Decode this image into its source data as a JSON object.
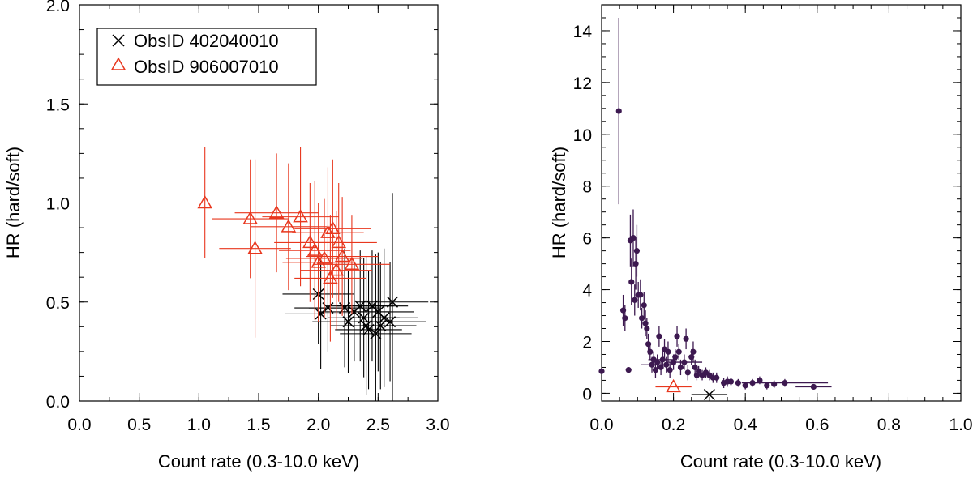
{
  "chart_data": [
    {
      "type": "scatter",
      "xlabel": "Count rate (0.3-10.0 keV)",
      "ylabel": "HR (hard/soft)",
      "xlim": [
        0.0,
        3.0
      ],
      "ylim": [
        0.0,
        2.0
      ],
      "xticks": [
        0.0,
        0.5,
        1.0,
        1.5,
        2.0,
        2.5,
        3.0
      ],
      "xtick_labels": [
        "0.0",
        "0.5",
        "1.0",
        "1.5",
        "2.0",
        "2.5",
        "3.0"
      ],
      "yticks": [
        0.0,
        0.5,
        1.0,
        1.5,
        2.0
      ],
      "ytick_labels": [
        "0.0",
        "0.5",
        "1.0",
        "1.5",
        "2.0"
      ],
      "legend": {
        "position": "top-left",
        "entries": [
          {
            "label": "ObsID 402040010",
            "marker": "cross",
            "color": "#000000"
          },
          {
            "label": "ObsID 906007010",
            "marker": "triangle",
            "color": "#e8371e"
          }
        ]
      },
      "series": [
        {
          "name": "ObsID 402040010",
          "marker": "cross",
          "color": "#000000",
          "points": [
            {
              "x": 2.0,
              "y": 0.54,
              "xerr": 0.3,
              "yerr": 0.25
            },
            {
              "x": 2.02,
              "y": 0.44,
              "xerr": 0.3,
              "yerr": 0.28
            },
            {
              "x": 2.08,
              "y": 0.47,
              "xerr": 0.28,
              "yerr": 0.22
            },
            {
              "x": 2.22,
              "y": 0.47,
              "xerr": 0.3,
              "yerr": 0.3
            },
            {
              "x": 2.25,
              "y": 0.4,
              "xerr": 0.3,
              "yerr": 0.26
            },
            {
              "x": 2.3,
              "y": 0.45,
              "xerr": 0.3,
              "yerr": 0.25
            },
            {
              "x": 2.35,
              "y": 0.48,
              "xerr": 0.28,
              "yerr": 0.28
            },
            {
              "x": 2.38,
              "y": 0.42,
              "xerr": 0.3,
              "yerr": 0.3
            },
            {
              "x": 2.4,
              "y": 0.38,
              "xerr": 0.3,
              "yerr": 0.35
            },
            {
              "x": 2.42,
              "y": 0.36,
              "xerr": 0.28,
              "yerr": 0.3
            },
            {
              "x": 2.45,
              "y": 0.48,
              "xerr": 0.3,
              "yerr": 0.28
            },
            {
              "x": 2.48,
              "y": 0.34,
              "xerr": 0.3,
              "yerr": 0.4
            },
            {
              "x": 2.5,
              "y": 0.45,
              "xerr": 0.3,
              "yerr": 0.3
            },
            {
              "x": 2.52,
              "y": 0.38,
              "xerr": 0.3,
              "yerr": 0.32
            },
            {
              "x": 2.55,
              "y": 0.42,
              "xerr": 0.28,
              "yerr": 0.35
            },
            {
              "x": 2.6,
              "y": 0.4,
              "xerr": 0.3,
              "yerr": 0.3
            },
            {
              "x": 2.62,
              "y": 0.5,
              "xerr": 0.3,
              "yerr": 0.55
            }
          ]
        },
        {
          "name": "ObsID 906007010",
          "marker": "triangle",
          "color": "#e8371e",
          "points": [
            {
              "x": 1.05,
              "y": 1.0,
              "xerr": 0.4,
              "yerr": 0.28
            },
            {
              "x": 1.43,
              "y": 0.92,
              "xerr": 0.32,
              "yerr": 0.3
            },
            {
              "x": 1.47,
              "y": 0.77,
              "xerr": 0.3,
              "yerr": 0.45
            },
            {
              "x": 1.65,
              "y": 0.95,
              "xerr": 0.35,
              "yerr": 0.3
            },
            {
              "x": 1.75,
              "y": 0.88,
              "xerr": 0.32,
              "yerr": 0.32
            },
            {
              "x": 1.85,
              "y": 0.93,
              "xerr": 0.32,
              "yerr": 0.35
            },
            {
              "x": 1.93,
              "y": 0.8,
              "xerr": 0.3,
              "yerr": 0.3
            },
            {
              "x": 1.97,
              "y": 0.76,
              "xerr": 0.3,
              "yerr": 0.35
            },
            {
              "x": 2.0,
              "y": 0.7,
              "xerr": 0.3,
              "yerr": 0.3
            },
            {
              "x": 2.05,
              "y": 0.72,
              "xerr": 0.32,
              "yerr": 0.3
            },
            {
              "x": 2.08,
              "y": 0.85,
              "xerr": 0.3,
              "yerr": 0.33
            },
            {
              "x": 2.1,
              "y": 0.62,
              "xerr": 0.3,
              "yerr": 0.32
            },
            {
              "x": 2.12,
              "y": 0.87,
              "xerr": 0.32,
              "yerr": 0.35
            },
            {
              "x": 2.15,
              "y": 0.66,
              "xerr": 0.3,
              "yerr": 0.3
            },
            {
              "x": 2.17,
              "y": 0.8,
              "xerr": 0.32,
              "yerr": 0.3
            },
            {
              "x": 2.2,
              "y": 0.73,
              "xerr": 0.3,
              "yerr": 0.3
            },
            {
              "x": 2.28,
              "y": 0.69,
              "xerr": 0.32,
              "yerr": 0.25
            }
          ]
        }
      ]
    },
    {
      "type": "scatter",
      "xlabel": "Count rate (0.3-10.0 keV)",
      "ylabel": "HR (hard/soft)",
      "xlim": [
        0.0,
        1.0
      ],
      "ylim": [
        -0.3,
        15.0
      ],
      "xticks": [
        0.0,
        0.2,
        0.4,
        0.6,
        0.8,
        1.0
      ],
      "xtick_labels": [
        "0.0",
        "0.2",
        "0.4",
        "0.6",
        "0.8",
        "1.0"
      ],
      "yticks": [
        0,
        2,
        4,
        6,
        8,
        10,
        12,
        14
      ],
      "ytick_labels": [
        "0",
        "2",
        "4",
        "6",
        "8",
        "10",
        "12",
        "14"
      ],
      "series": [
        {
          "marker": "dot",
          "color": "#3d1950",
          "points": [
            {
              "x": 0.0,
              "y": 0.85,
              "yerr": 0.0
            },
            {
              "x": 0.048,
              "y": 10.9,
              "yerr": 3.6
            },
            {
              "x": 0.06,
              "y": 3.2,
              "yerr": 0.6
            },
            {
              "x": 0.065,
              "y": 2.9,
              "yerr": 0.5
            },
            {
              "x": 0.075,
              "y": 0.9,
              "yerr": 0.0
            },
            {
              "x": 0.08,
              "y": 5.9,
              "yerr": 1.0
            },
            {
              "x": 0.083,
              "y": 4.3,
              "yerr": 0.9
            },
            {
              "x": 0.088,
              "y": 6.0,
              "yerr": 1.1
            },
            {
              "x": 0.092,
              "y": 3.6,
              "yerr": 0.6
            },
            {
              "x": 0.095,
              "y": 5.0,
              "yerr": 1.0
            },
            {
              "x": 0.098,
              "y": 5.5,
              "yerr": 1.0
            },
            {
              "x": 0.102,
              "y": 3.8,
              "yerr": 0.5
            },
            {
              "x": 0.108,
              "y": 3.8,
              "yerr": 0.6
            },
            {
              "x": 0.112,
              "y": 2.9,
              "yerr": 0.4
            },
            {
              "x": 0.118,
              "y": 3.4,
              "yerr": 0.5
            },
            {
              "x": 0.122,
              "y": 2.7,
              "yerr": 0.5
            },
            {
              "x": 0.126,
              "y": 2.5,
              "yerr": 0.4
            },
            {
              "x": 0.13,
              "y": 1.9,
              "yerr": 0.4
            },
            {
              "x": 0.135,
              "y": 1.6,
              "yerr": 0.3
            },
            {
              "x": 0.14,
              "y": 1.1,
              "yerr": 0.3,
              "xerr": 0.03
            },
            {
              "x": 0.145,
              "y": 1.3,
              "yerr": 0.3
            },
            {
              "x": 0.15,
              "y": 0.9,
              "yerr": 0.3
            },
            {
              "x": 0.155,
              "y": 1.2,
              "yerr": 0.3
            },
            {
              "x": 0.16,
              "y": 2.2,
              "yerr": 0.4
            },
            {
              "x": 0.165,
              "y": 1.0,
              "yerr": 0.3
            },
            {
              "x": 0.17,
              "y": 1.3,
              "yerr": 0.3,
              "xerr": 0.04
            },
            {
              "x": 0.175,
              "y": 1.7,
              "yerr": 0.4
            },
            {
              "x": 0.18,
              "y": 1.1,
              "yerr": 0.3
            },
            {
              "x": 0.185,
              "y": 1.6,
              "yerr": 0.4
            },
            {
              "x": 0.19,
              "y": 0.9,
              "yerr": 0.3
            },
            {
              "x": 0.2,
              "y": 1.2,
              "yerr": 0.3
            },
            {
              "x": 0.205,
              "y": 1.4,
              "yerr": 0.3
            },
            {
              "x": 0.21,
              "y": 2.2,
              "yerr": 0.4
            },
            {
              "x": 0.215,
              "y": 1.6,
              "yerr": 0.3
            },
            {
              "x": 0.22,
              "y": 1.0,
              "yerr": 0.3
            },
            {
              "x": 0.23,
              "y": 1.2,
              "yerr": 0.3,
              "xerr": 0.05
            },
            {
              "x": 0.235,
              "y": 2.1,
              "yerr": 0.4
            },
            {
              "x": 0.24,
              "y": 0.8,
              "yerr": 0.3
            },
            {
              "x": 0.25,
              "y": 1.4,
              "yerr": 0.3
            },
            {
              "x": 0.255,
              "y": 1.6,
              "yerr": 0.4
            },
            {
              "x": 0.26,
              "y": 1.0,
              "yerr": 0.3
            },
            {
              "x": 0.265,
              "y": 0.7,
              "yerr": 0.2
            },
            {
              "x": 0.27,
              "y": 0.85,
              "yerr": 0.2
            },
            {
              "x": 0.28,
              "y": 0.7,
              "yerr": 0.2
            },
            {
              "x": 0.29,
              "y": 0.8,
              "yerr": 0.2
            },
            {
              "x": 0.3,
              "y": 0.7,
              "yerr": 0.2
            },
            {
              "x": 0.31,
              "y": 0.6,
              "yerr": 0.2
            },
            {
              "x": 0.32,
              "y": 0.6,
              "yerr": 0.2
            },
            {
              "x": 0.34,
              "y": 0.4,
              "yerr": 0.2
            },
            {
              "x": 0.35,
              "y": 0.45,
              "yerr": 0.2
            },
            {
              "x": 0.36,
              "y": 0.45,
              "yerr": 0.15
            },
            {
              "x": 0.38,
              "y": 0.4,
              "yerr": 0.15
            },
            {
              "x": 0.4,
              "y": 0.3,
              "yerr": 0.15
            },
            {
              "x": 0.42,
              "y": 0.4,
              "yerr": 0.15
            },
            {
              "x": 0.44,
              "y": 0.5,
              "yerr": 0.15
            },
            {
              "x": 0.46,
              "y": 0.3,
              "yerr": 0.15
            },
            {
              "x": 0.48,
              "y": 0.35,
              "yerr": 0.15
            },
            {
              "x": 0.51,
              "y": 0.4,
              "yerr": 0.15,
              "xerr": 0.12
            },
            {
              "x": 0.59,
              "y": 0.25,
              "yerr": 0.1,
              "xerr": 0.05
            }
          ]
        },
        {
          "marker": "triangle",
          "color": "#e8371e",
          "points": [
            {
              "x": 0.2,
              "y": 0.25,
              "xerr": 0.05,
              "yerr": 0.0
            }
          ]
        },
        {
          "marker": "cross",
          "color": "#000000",
          "points": [
            {
              "x": 0.3,
              "y": -0.05,
              "xerr": 0.05,
              "yerr": 0.0
            }
          ]
        }
      ]
    }
  ]
}
